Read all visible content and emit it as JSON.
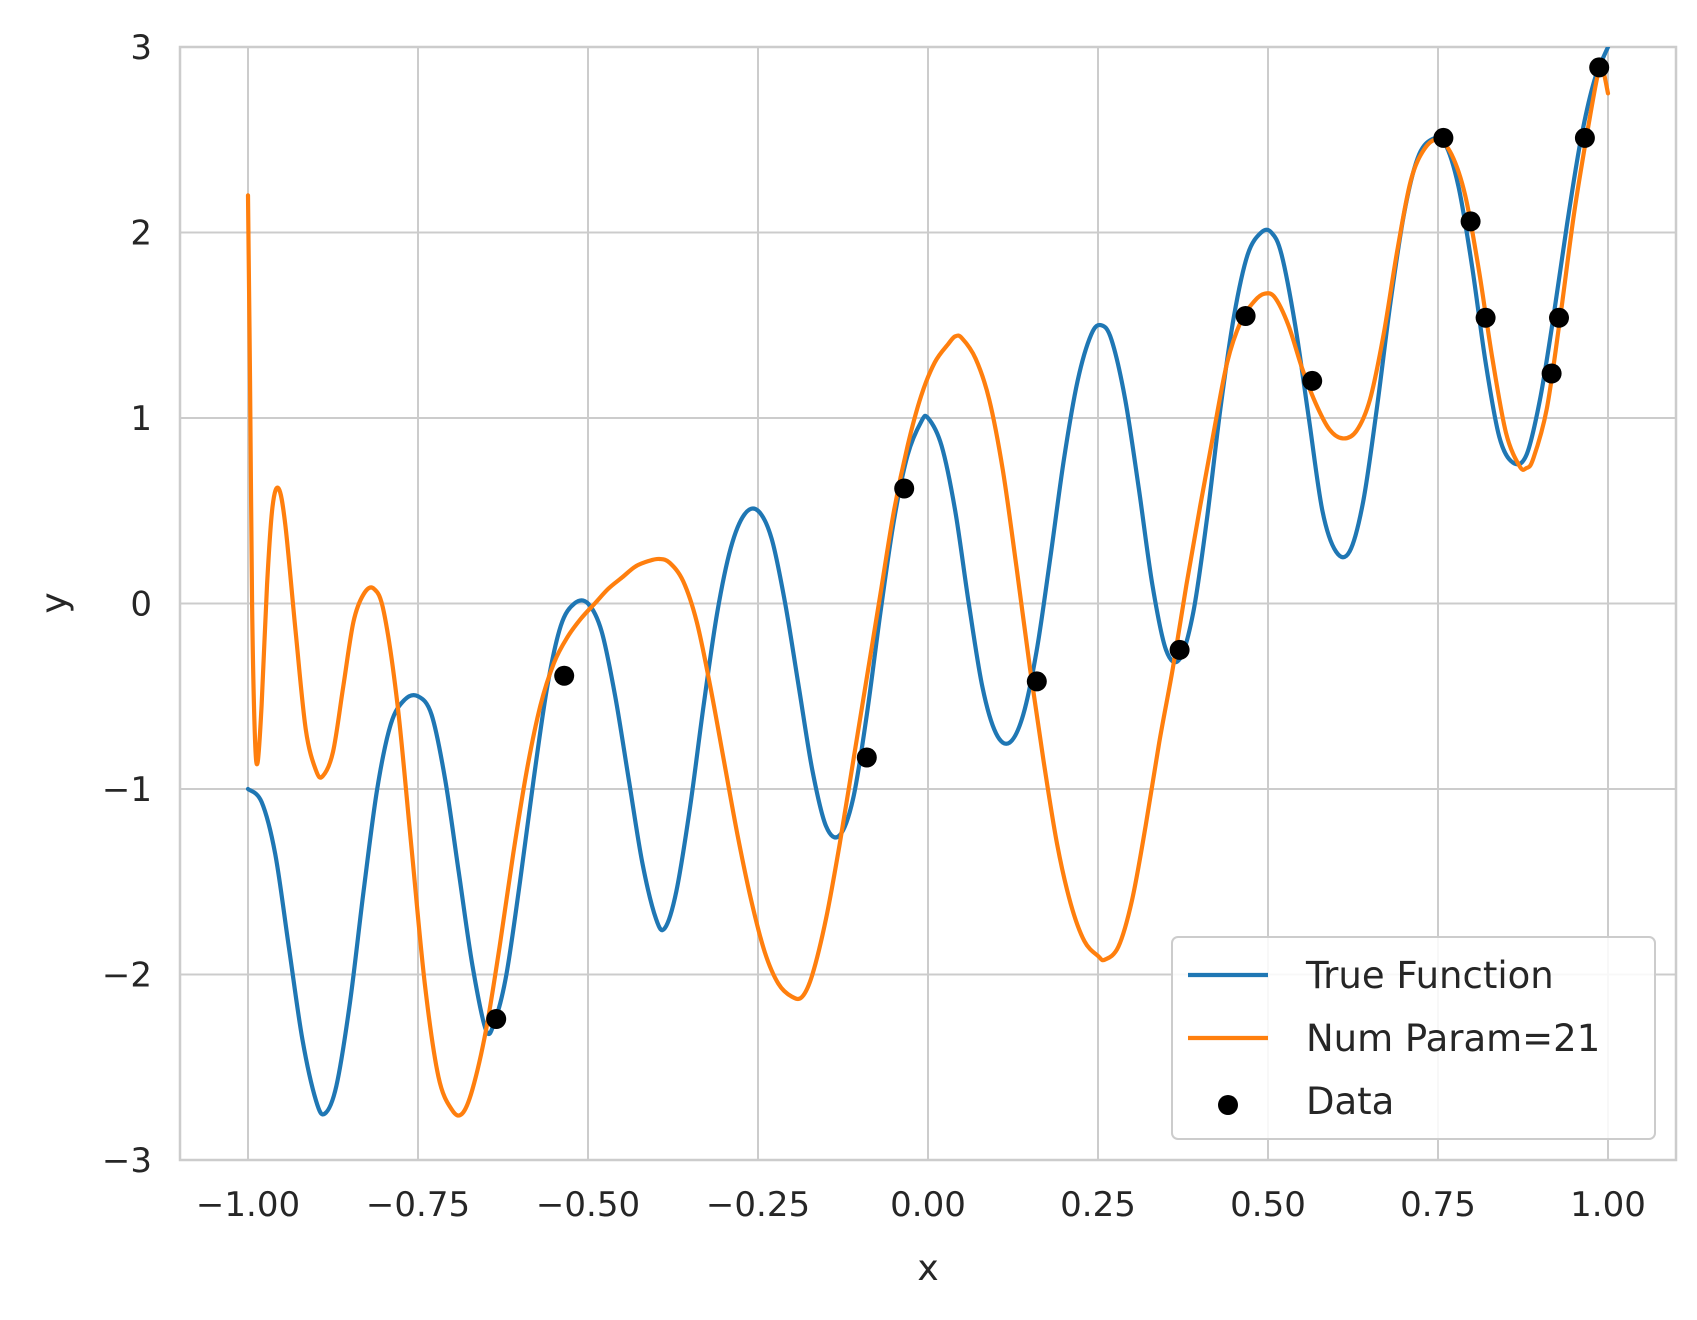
{
  "chart_data": {
    "type": "line",
    "xlabel": "x",
    "ylabel": "y",
    "xlim": [
      -1.1,
      1.1
    ],
    "ylim": [
      -3,
      3
    ],
    "x_ticks": [
      -1.0,
      -0.75,
      -0.5,
      -0.25,
      0.0,
      0.25,
      0.5,
      0.75,
      1.0
    ],
    "x_tick_labels": [
      "−1.00",
      "−0.75",
      "−0.50",
      "−0.25",
      "0.00",
      "0.25",
      "0.50",
      "0.75",
      "1.00"
    ],
    "y_ticks": [
      -3,
      -2,
      -1,
      0,
      1,
      2,
      3
    ],
    "y_tick_labels": [
      "−3",
      "−2",
      "−1",
      "0",
      "1",
      "2",
      "3"
    ],
    "grid": true,
    "legend_position": "lower-right",
    "series": [
      {
        "name": "True Function",
        "kind": "line",
        "color": "#1f77b4",
        "points": [
          [
            -1.0,
            -1.0
          ],
          [
            -0.98,
            -1.07
          ],
          [
            -0.96,
            -1.35
          ],
          [
            -0.94,
            -1.85
          ],
          [
            -0.92,
            -2.35
          ],
          [
            -0.9,
            -2.68
          ],
          [
            -0.887,
            -2.75
          ],
          [
            -0.87,
            -2.6
          ],
          [
            -0.85,
            -2.15
          ],
          [
            -0.83,
            -1.55
          ],
          [
            -0.81,
            -1.0
          ],
          [
            -0.79,
            -0.65
          ],
          [
            -0.77,
            -0.52
          ],
          [
            -0.75,
            -0.5
          ],
          [
            -0.73,
            -0.6
          ],
          [
            -0.71,
            -0.95
          ],
          [
            -0.69,
            -1.45
          ],
          [
            -0.67,
            -1.95
          ],
          [
            -0.65,
            -2.3
          ],
          [
            -0.637,
            -2.25
          ],
          [
            -0.62,
            -2.0
          ],
          [
            -0.6,
            -1.5
          ],
          [
            -0.58,
            -0.95
          ],
          [
            -0.56,
            -0.45
          ],
          [
            -0.54,
            -0.12
          ],
          [
            -0.52,
            0.0
          ],
          [
            -0.5,
            0.0
          ],
          [
            -0.48,
            -0.15
          ],
          [
            -0.46,
            -0.5
          ],
          [
            -0.44,
            -0.95
          ],
          [
            -0.42,
            -1.4
          ],
          [
            -0.4,
            -1.7
          ],
          [
            -0.387,
            -1.75
          ],
          [
            -0.37,
            -1.55
          ],
          [
            -0.35,
            -1.1
          ],
          [
            -0.33,
            -0.55
          ],
          [
            -0.31,
            -0.05
          ],
          [
            -0.29,
            0.3
          ],
          [
            -0.27,
            0.48
          ],
          [
            -0.25,
            0.5
          ],
          [
            -0.23,
            0.35
          ],
          [
            -0.21,
            0.0
          ],
          [
            -0.19,
            -0.45
          ],
          [
            -0.17,
            -0.9
          ],
          [
            -0.15,
            -1.2
          ],
          [
            -0.13,
            -1.25
          ],
          [
            -0.11,
            -1.05
          ],
          [
            -0.09,
            -0.6
          ],
          [
            -0.07,
            -0.05
          ],
          [
            -0.05,
            0.45
          ],
          [
            -0.03,
            0.8
          ],
          [
            -0.01,
            0.98
          ],
          [
            0.0,
            1.0
          ],
          [
            0.02,
            0.85
          ],
          [
            0.04,
            0.5
          ],
          [
            0.06,
            0.0
          ],
          [
            0.08,
            -0.45
          ],
          [
            0.1,
            -0.7
          ],
          [
            0.12,
            -0.75
          ],
          [
            0.14,
            -0.6
          ],
          [
            0.16,
            -0.25
          ],
          [
            0.18,
            0.25
          ],
          [
            0.2,
            0.78
          ],
          [
            0.22,
            1.2
          ],
          [
            0.24,
            1.45
          ],
          [
            0.255,
            1.5
          ],
          [
            0.27,
            1.42
          ],
          [
            0.29,
            1.1
          ],
          [
            0.31,
            0.62
          ],
          [
            0.33,
            0.1
          ],
          [
            0.35,
            -0.25
          ],
          [
            0.37,
            -0.3
          ],
          [
            0.39,
            -0.05
          ],
          [
            0.41,
            0.45
          ],
          [
            0.43,
            1.05
          ],
          [
            0.45,
            1.55
          ],
          [
            0.47,
            1.88
          ],
          [
            0.49,
            2.0
          ],
          [
            0.505,
            2.0
          ],
          [
            0.52,
            1.88
          ],
          [
            0.54,
            1.5
          ],
          [
            0.56,
            1.0
          ],
          [
            0.58,
            0.5
          ],
          [
            0.6,
            0.28
          ],
          [
            0.62,
            0.28
          ],
          [
            0.64,
            0.55
          ],
          [
            0.66,
            1.05
          ],
          [
            0.68,
            1.62
          ],
          [
            0.7,
            2.1
          ],
          [
            0.72,
            2.4
          ],
          [
            0.74,
            2.5
          ],
          [
            0.76,
            2.48
          ],
          [
            0.78,
            2.25
          ],
          [
            0.8,
            1.82
          ],
          [
            0.82,
            1.3
          ],
          [
            0.84,
            0.9
          ],
          [
            0.86,
            0.76
          ],
          [
            0.88,
            0.8
          ],
          [
            0.9,
            1.1
          ],
          [
            0.92,
            1.55
          ],
          [
            0.94,
            2.05
          ],
          [
            0.96,
            2.5
          ],
          [
            0.98,
            2.82
          ],
          [
            1.0,
            3.0
          ]
        ]
      },
      {
        "name": "Num Param=21",
        "kind": "line",
        "color": "#ff7f0e",
        "points": [
          [
            -1.0,
            2.2
          ],
          [
            -0.997,
            1.2
          ],
          [
            -0.994,
            0.0
          ],
          [
            -0.99,
            -0.7
          ],
          [
            -0.986,
            -0.86
          ],
          [
            -0.98,
            -0.55
          ],
          [
            -0.972,
            0.1
          ],
          [
            -0.964,
            0.52
          ],
          [
            -0.955,
            0.62
          ],
          [
            -0.945,
            0.42
          ],
          [
            -0.93,
            -0.15
          ],
          [
            -0.915,
            -0.68
          ],
          [
            -0.9,
            -0.9
          ],
          [
            -0.89,
            -0.93
          ],
          [
            -0.875,
            -0.8
          ],
          [
            -0.86,
            -0.45
          ],
          [
            -0.845,
            -0.1
          ],
          [
            -0.83,
            0.05
          ],
          [
            -0.815,
            0.08
          ],
          [
            -0.8,
            -0.05
          ],
          [
            -0.78,
            -0.55
          ],
          [
            -0.76,
            -1.3
          ],
          [
            -0.74,
            -2.05
          ],
          [
            -0.72,
            -2.55
          ],
          [
            -0.7,
            -2.73
          ],
          [
            -0.685,
            -2.75
          ],
          [
            -0.67,
            -2.62
          ],
          [
            -0.65,
            -2.3
          ],
          [
            -0.63,
            -1.85
          ],
          [
            -0.61,
            -1.35
          ],
          [
            -0.59,
            -0.9
          ],
          [
            -0.57,
            -0.55
          ],
          [
            -0.55,
            -0.32
          ],
          [
            -0.53,
            -0.18
          ],
          [
            -0.51,
            -0.08
          ],
          [
            -0.49,
            0.0
          ],
          [
            -0.47,
            0.08
          ],
          [
            -0.45,
            0.14
          ],
          [
            -0.43,
            0.2
          ],
          [
            -0.41,
            0.23
          ],
          [
            -0.395,
            0.24
          ],
          [
            -0.38,
            0.22
          ],
          [
            -0.36,
            0.12
          ],
          [
            -0.34,
            -0.1
          ],
          [
            -0.32,
            -0.45
          ],
          [
            -0.3,
            -0.85
          ],
          [
            -0.28,
            -1.25
          ],
          [
            -0.26,
            -1.6
          ],
          [
            -0.24,
            -1.88
          ],
          [
            -0.22,
            -2.05
          ],
          [
            -0.2,
            -2.12
          ],
          [
            -0.185,
            -2.12
          ],
          [
            -0.17,
            -2.0
          ],
          [
            -0.15,
            -1.7
          ],
          [
            -0.13,
            -1.3
          ],
          [
            -0.11,
            -0.85
          ],
          [
            -0.09,
            -0.4
          ],
          [
            -0.07,
            0.05
          ],
          [
            -0.05,
            0.5
          ],
          [
            -0.03,
            0.85
          ],
          [
            -0.01,
            1.12
          ],
          [
            0.01,
            1.3
          ],
          [
            0.03,
            1.4
          ],
          [
            0.04,
            1.44
          ],
          [
            0.05,
            1.43
          ],
          [
            0.07,
            1.32
          ],
          [
            0.09,
            1.1
          ],
          [
            0.11,
            0.72
          ],
          [
            0.13,
            0.2
          ],
          [
            0.15,
            -0.35
          ],
          [
            0.17,
            -0.85
          ],
          [
            0.19,
            -1.3
          ],
          [
            0.21,
            -1.62
          ],
          [
            0.23,
            -1.82
          ],
          [
            0.25,
            -1.9
          ],
          [
            0.26,
            -1.92
          ],
          [
            0.28,
            -1.85
          ],
          [
            0.3,
            -1.6
          ],
          [
            0.32,
            -1.2
          ],
          [
            0.34,
            -0.75
          ],
          [
            0.36,
            -0.35
          ],
          [
            0.38,
            0.1
          ],
          [
            0.4,
            0.52
          ],
          [
            0.42,
            0.92
          ],
          [
            0.44,
            1.3
          ],
          [
            0.46,
            1.52
          ],
          [
            0.48,
            1.63
          ],
          [
            0.495,
            1.67
          ],
          [
            0.51,
            1.65
          ],
          [
            0.53,
            1.5
          ],
          [
            0.55,
            1.27
          ],
          [
            0.57,
            1.08
          ],
          [
            0.59,
            0.94
          ],
          [
            0.61,
            0.89
          ],
          [
            0.63,
            0.93
          ],
          [
            0.65,
            1.1
          ],
          [
            0.67,
            1.45
          ],
          [
            0.69,
            1.9
          ],
          [
            0.71,
            2.28
          ],
          [
            0.73,
            2.45
          ],
          [
            0.75,
            2.5
          ],
          [
            0.77,
            2.42
          ],
          [
            0.79,
            2.2
          ],
          [
            0.81,
            1.8
          ],
          [
            0.83,
            1.32
          ],
          [
            0.85,
            0.92
          ],
          [
            0.87,
            0.74
          ],
          [
            0.88,
            0.73
          ],
          [
            0.89,
            0.78
          ],
          [
            0.91,
            1.05
          ],
          [
            0.93,
            1.55
          ],
          [
            0.95,
            2.1
          ],
          [
            0.97,
            2.55
          ],
          [
            0.985,
            2.85
          ],
          [
            0.992,
            2.88
          ],
          [
            1.0,
            2.75
          ]
        ]
      },
      {
        "name": "Data",
        "kind": "scatter",
        "color": "#000000",
        "points": [
          [
            -0.635,
            -2.24
          ],
          [
            -0.535,
            -0.39
          ],
          [
            -0.09,
            -0.83
          ],
          [
            -0.035,
            0.62
          ],
          [
            0.16,
            -0.42
          ],
          [
            0.37,
            -0.25
          ],
          [
            0.467,
            1.55
          ],
          [
            0.565,
            1.2
          ],
          [
            0.758,
            2.51
          ],
          [
            0.798,
            2.06
          ],
          [
            0.82,
            1.54
          ],
          [
            0.917,
            1.24
          ],
          [
            0.928,
            1.54
          ],
          [
            0.966,
            2.51
          ],
          [
            0.987,
            2.89
          ]
        ]
      }
    ]
  }
}
